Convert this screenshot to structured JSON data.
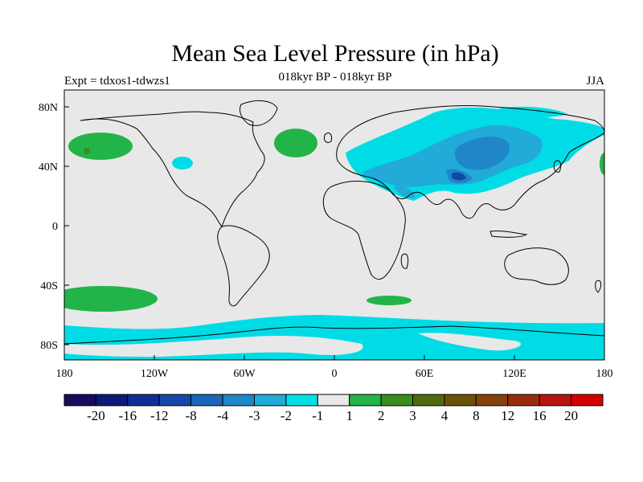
{
  "header": {
    "title": "Mean Sea Level Pressure (in hPa)",
    "expt": "Expt = tdxos1-tdwzs1",
    "subtitle": "018kyr BP - 018kyr BP",
    "season": "JJA"
  },
  "axes": {
    "x_ticks": [
      "180",
      "120W",
      "60W",
      "0",
      "60E",
      "120E",
      "180"
    ],
    "y_ticks": [
      "80N",
      "40N",
      "0",
      "40S",
      "80S"
    ]
  },
  "colorbar": {
    "colors": [
      "#1a0a5e",
      "#0d1a7a",
      "#0f2f96",
      "#1548a8",
      "#1b66b8",
      "#1f86c8",
      "#22aad8",
      "#00e0e6",
      "#e8e8e8",
      "#22b448",
      "#3a8c1e",
      "#4f6a0c",
      "#6a5208",
      "#84420a",
      "#9a2c0c",
      "#b81410",
      "#d40000"
    ],
    "labels": [
      "-20",
      "-16",
      "-12",
      "-8",
      "-4",
      "-3",
      "-2",
      "-1",
      "1",
      "2",
      "3",
      "4",
      "8",
      "12",
      "16",
      "20"
    ]
  },
  "map_colors": {
    "ocean_land_background": "#e8e8e8",
    "level_minus1": "#00dce6",
    "level_minus2": "#22aad8",
    "level_minus3": "#1f86c8",
    "level_minus4": "#1548a8",
    "level_plus1": "#22b448",
    "level_plus2": "#3a8c1e"
  }
}
